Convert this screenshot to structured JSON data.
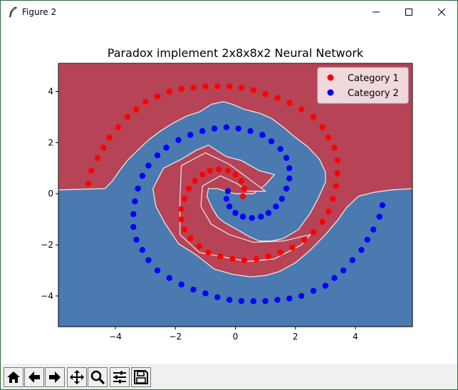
{
  "window": {
    "title": "Figure 2",
    "controls": [
      "minimize",
      "maximize",
      "close"
    ]
  },
  "toolbar": {
    "buttons": [
      {
        "name": "home-icon"
      },
      {
        "name": "back-arrow-icon"
      },
      {
        "name": "forward-arrow-icon"
      },
      {
        "name": "pan-icon"
      },
      {
        "name": "zoom-icon"
      },
      {
        "name": "configure-subplots-icon"
      },
      {
        "name": "save-icon"
      }
    ]
  },
  "colors": {
    "region_category_1": "#b64356",
    "region_category_2": "#4a7ab0",
    "boundary": "#e8e8e8",
    "category_1": "#ff0000",
    "category_2": "#0000ff"
  },
  "chart_data": {
    "type": "scatter",
    "title": "Paradox implement 2x8x8x2 Neural Network",
    "xlabel": "",
    "ylabel": "",
    "xlim": [
      -5.9,
      5.9
    ],
    "ylim": [
      -5.2,
      5.1
    ],
    "xticks": [
      -4,
      -2,
      0,
      2,
      4
    ],
    "yticks": [
      -4,
      -2,
      0,
      2,
      4
    ],
    "x_tick_labels": [
      "−4",
      "−2",
      "0",
      "2",
      "4"
    ],
    "y_tick_labels": [
      "−4",
      "−2",
      "0",
      "2",
      "4"
    ],
    "grid": false,
    "legend_position": "upper right",
    "background": "decision regions of two categories (red and blue) with a light boundary line",
    "series": [
      {
        "name": "Category 1",
        "color": "#ff0000",
        "marker": "circle",
        "points": [
          [
            -4.9,
            0.4
          ],
          [
            -4.8,
            0.9
          ],
          [
            -4.6,
            1.4
          ],
          [
            -4.4,
            1.8
          ],
          [
            -4.2,
            2.2
          ],
          [
            -3.9,
            2.6
          ],
          [
            -3.6,
            3.0
          ],
          [
            -3.3,
            3.3
          ],
          [
            -3.0,
            3.6
          ],
          [
            -2.6,
            3.8
          ],
          [
            -2.2,
            4.0
          ],
          [
            -1.8,
            4.1
          ],
          [
            -1.4,
            4.15
          ],
          [
            -1.0,
            4.2
          ],
          [
            -0.6,
            4.2
          ],
          [
            -0.2,
            4.2
          ],
          [
            0.2,
            4.15
          ],
          [
            0.6,
            4.05
          ],
          [
            1.0,
            3.9
          ],
          [
            1.4,
            3.75
          ],
          [
            1.8,
            3.55
          ],
          [
            2.2,
            3.3
          ],
          [
            2.6,
            3.0
          ],
          [
            2.9,
            2.6
          ],
          [
            3.1,
            2.2
          ],
          [
            3.3,
            1.8
          ],
          [
            3.4,
            1.3
          ],
          [
            3.4,
            0.8
          ],
          [
            3.35,
            0.3
          ],
          [
            3.25,
            -0.2
          ],
          [
            3.1,
            -0.7
          ],
          [
            2.9,
            -1.1
          ],
          [
            2.6,
            -1.5
          ],
          [
            2.3,
            -1.8
          ],
          [
            1.9,
            -2.1
          ],
          [
            1.5,
            -2.3
          ],
          [
            1.1,
            -2.45
          ],
          [
            0.7,
            -2.55
          ],
          [
            0.3,
            -2.6
          ],
          [
            -0.1,
            -2.55
          ],
          [
            -0.5,
            -2.45
          ],
          [
            -0.9,
            -2.3
          ],
          [
            -1.2,
            -2.05
          ],
          [
            -1.5,
            -1.75
          ],
          [
            -1.7,
            -1.4
          ],
          [
            -1.8,
            -1.0
          ],
          [
            -1.8,
            -0.6
          ],
          [
            -1.7,
            -0.2
          ],
          [
            -1.55,
            0.2
          ],
          [
            -1.35,
            0.5
          ],
          [
            -1.1,
            0.75
          ],
          [
            -0.85,
            0.9
          ],
          [
            -0.55,
            0.95
          ],
          [
            -0.25,
            0.9
          ],
          [
            0.0,
            0.75
          ],
          [
            0.2,
            0.5
          ],
          [
            0.3,
            0.2
          ],
          [
            0.25,
            -0.1
          ]
        ]
      },
      {
        "name": "Category 2",
        "color": "#0000ff",
        "marker": "circle",
        "points": [
          [
            4.9,
            -0.45
          ],
          [
            4.8,
            -0.9
          ],
          [
            4.6,
            -1.4
          ],
          [
            4.4,
            -1.8
          ],
          [
            4.2,
            -2.2
          ],
          [
            3.9,
            -2.6
          ],
          [
            3.6,
            -3.0
          ],
          [
            3.3,
            -3.3
          ],
          [
            3.0,
            -3.6
          ],
          [
            2.6,
            -3.8
          ],
          [
            2.2,
            -4.0
          ],
          [
            1.8,
            -4.1
          ],
          [
            1.4,
            -4.15
          ],
          [
            1.0,
            -4.2
          ],
          [
            0.6,
            -4.2
          ],
          [
            0.2,
            -4.2
          ],
          [
            -0.2,
            -4.15
          ],
          [
            -0.6,
            -4.05
          ],
          [
            -1.0,
            -3.9
          ],
          [
            -1.4,
            -3.75
          ],
          [
            -1.8,
            -3.55
          ],
          [
            -2.2,
            -3.3
          ],
          [
            -2.6,
            -3.0
          ],
          [
            -2.9,
            -2.6
          ],
          [
            -3.1,
            -2.2
          ],
          [
            -3.3,
            -1.8
          ],
          [
            -3.4,
            -1.3
          ],
          [
            -3.4,
            -0.8
          ],
          [
            -3.35,
            -0.3
          ],
          [
            -3.25,
            0.2
          ],
          [
            -3.1,
            0.7
          ],
          [
            -2.9,
            1.1
          ],
          [
            -2.6,
            1.5
          ],
          [
            -2.3,
            1.8
          ],
          [
            -1.9,
            2.1
          ],
          [
            -1.5,
            2.3
          ],
          [
            -1.1,
            2.45
          ],
          [
            -0.7,
            2.55
          ],
          [
            -0.3,
            2.6
          ],
          [
            0.1,
            2.55
          ],
          [
            0.5,
            2.45
          ],
          [
            0.9,
            2.3
          ],
          [
            1.2,
            2.05
          ],
          [
            1.5,
            1.75
          ],
          [
            1.7,
            1.4
          ],
          [
            1.8,
            1.0
          ],
          [
            1.8,
            0.6
          ],
          [
            1.7,
            0.2
          ],
          [
            1.55,
            -0.2
          ],
          [
            1.35,
            -0.5
          ],
          [
            1.1,
            -0.75
          ],
          [
            0.85,
            -0.9
          ],
          [
            0.55,
            -0.95
          ],
          [
            0.25,
            -0.9
          ],
          [
            0.0,
            -0.75
          ],
          [
            -0.2,
            -0.5
          ],
          [
            -0.3,
            -0.2
          ],
          [
            -0.25,
            0.1
          ]
        ]
      }
    ]
  }
}
